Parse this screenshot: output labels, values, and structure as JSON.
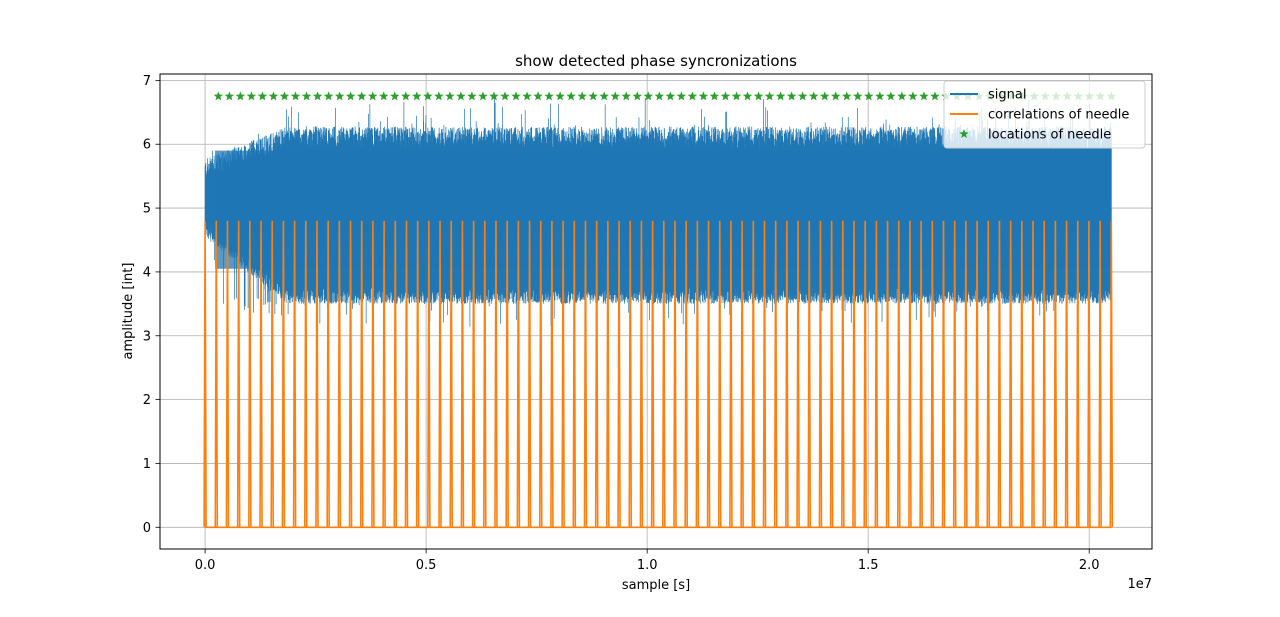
{
  "chart_data": {
    "type": "line",
    "title": "show detected phase syncronizations",
    "xlabel": "sample [s]",
    "ylabel": "amplitude [int]",
    "x_offset_label": "1e7",
    "xlim": [
      -0.102,
      2.142
    ],
    "ylim": [
      -0.34,
      7.1
    ],
    "x_scale": "linear (×1e7)",
    "xticks": [
      0.0,
      0.5,
      1.0,
      1.5,
      2.0
    ],
    "xtick_labels": [
      "0.0",
      "0.5",
      "1.0",
      "1.5",
      "2.0"
    ],
    "yticks": [
      0,
      1,
      2,
      3,
      4,
      5,
      6,
      7
    ],
    "ytick_labels": [
      "0",
      "1",
      "2",
      "3",
      "4",
      "5",
      "6",
      "7"
    ],
    "grid": true,
    "legend_position": "top-right",
    "series": [
      {
        "name": "signal",
        "color": "#1f77b4",
        "kind": "dense noisy band",
        "x_range": [
          0.0,
          2.05
        ],
        "band_low": 3.75,
        "band_high": 6.1,
        "peak_max": 6.6,
        "min_low": 3.3,
        "start_band": [
          4.8,
          5.6
        ]
      },
      {
        "name": "correlations of needle",
        "color": "#ff7f0e",
        "kind": "periodic spikes",
        "baseline": 0.0,
        "spike_height": 4.8,
        "spike_count": 82,
        "x_first": 0.0,
        "x_last": 2.05
      },
      {
        "name": "locations of needle",
        "color": "#2ca02c",
        "kind": "star markers",
        "y": 6.75,
        "count": 82,
        "x_first": 0.03,
        "x_last": 2.05
      }
    ]
  }
}
